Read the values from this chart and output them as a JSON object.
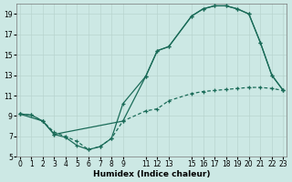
{
  "xlabel": "Humidex (Indice chaleur)",
  "background_color": "#cce8e4",
  "grid_color": "#b8d4cf",
  "line_color": "#1a6b58",
  "line1_x": [
    0,
    1,
    2,
    3,
    4,
    5,
    6,
    7,
    8,
    9,
    11,
    12,
    13,
    15,
    16,
    17,
    18,
    19,
    20,
    21,
    22,
    23
  ],
  "line1_y": [
    9.2,
    9.1,
    8.5,
    7.2,
    6.9,
    6.1,
    5.7,
    6.0,
    6.8,
    10.2,
    12.9,
    15.4,
    15.8,
    18.8,
    19.5,
    19.8,
    19.8,
    19.5,
    19.0,
    16.2,
    13.0,
    11.5
  ],
  "line2_x": [
    0,
    1,
    2,
    3,
    4,
    5,
    6,
    7,
    8,
    9,
    11,
    12,
    13,
    15,
    16,
    17,
    18,
    19,
    20,
    21,
    22,
    23
  ],
  "line2_y": [
    9.2,
    9.1,
    8.5,
    7.4,
    7.0,
    6.5,
    5.7,
    6.0,
    6.8,
    8.5,
    9.5,
    9.7,
    10.5,
    11.2,
    11.4,
    11.5,
    11.6,
    11.7,
    11.8,
    11.8,
    11.7,
    11.5
  ],
  "line3_x": [
    0,
    2,
    3,
    9,
    11,
    12,
    13,
    15,
    16,
    17,
    18,
    19,
    20,
    21,
    22,
    23
  ],
  "line3_y": [
    9.2,
    8.5,
    7.2,
    8.5,
    12.9,
    15.4,
    15.8,
    18.8,
    19.5,
    19.8,
    19.8,
    19.5,
    19.0,
    16.2,
    13.0,
    11.5
  ],
  "ylim": [
    5,
    20
  ],
  "xlim": [
    -0.3,
    23.3
  ],
  "yticks": [
    5,
    7,
    9,
    11,
    13,
    15,
    17,
    19
  ],
  "xticks": [
    0,
    1,
    2,
    3,
    4,
    5,
    6,
    7,
    8,
    9,
    11,
    12,
    13,
    15,
    16,
    17,
    18,
    19,
    20,
    21,
    22,
    23
  ],
  "tick_fontsize": 5.5,
  "xlabel_fontsize": 6.5
}
